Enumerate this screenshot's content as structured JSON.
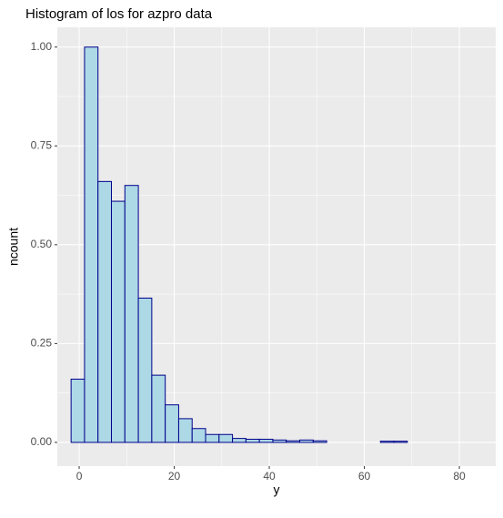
{
  "chart_data": {
    "type": "histogram",
    "title": "Histogram of los for azpro data",
    "xlabel": "y",
    "ylabel": "ncount",
    "bins": [
      -1.7,
      1.13,
      3.96,
      6.79,
      9.62,
      12.45,
      15.28,
      18.11,
      20.94,
      23.77,
      26.6,
      29.43,
      32.26,
      35.09,
      37.92,
      40.75,
      43.58,
      46.41,
      49.24,
      52.07,
      54.9,
      57.73,
      60.56,
      63.39,
      66.22,
      69.05,
      71.88,
      74.71,
      77.54,
      80.37,
      83.2
    ],
    "values": [
      0.16,
      1.0,
      0.66,
      0.61,
      0.65,
      0.365,
      0.17,
      0.095,
      0.06,
      0.035,
      0.02,
      0.02,
      0.01,
      0.008,
      0.008,
      0.006,
      0.004,
      0.006,
      0.004,
      0,
      0,
      0,
      0,
      0.003,
      0.003,
      0,
      0,
      0,
      0,
      0
    ],
    "fill": "#add8e6",
    "color": "#00008b",
    "xlim": [
      -4.6,
      87.65
    ],
    "ylim": [
      -0.06,
      1.05
    ],
    "xticks": [
      0,
      20,
      40,
      60,
      80
    ],
    "yticks": [
      {
        "value": 0,
        "label": "0.00"
      },
      {
        "value": 0.25,
        "label": "0.25"
      },
      {
        "value": 0.5,
        "label": "0.50"
      },
      {
        "value": 0.75,
        "label": "0.75"
      },
      {
        "value": 1,
        "label": "1.00"
      }
    ],
    "grid": true
  }
}
